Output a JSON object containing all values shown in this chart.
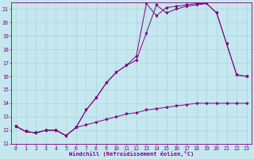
{
  "xlabel": "Windchill (Refroidissement éolien,°C)",
  "ylabel": "",
  "xlim": [
    -0.5,
    23.5
  ],
  "ylim": [
    11,
    21.5
  ],
  "yticks": [
    11,
    12,
    13,
    14,
    15,
    16,
    17,
    18,
    19,
    20,
    21
  ],
  "xticks": [
    0,
    1,
    2,
    3,
    4,
    5,
    6,
    7,
    8,
    9,
    10,
    11,
    12,
    13,
    14,
    15,
    16,
    17,
    18,
    19,
    20,
    21,
    22,
    23
  ],
  "bg_color": "#c5e8ef",
  "line_color": "#800080",
  "grid_color": "#aacdd8",
  "line1_x": [
    0,
    1,
    2,
    3,
    4,
    5,
    6,
    7,
    8,
    9,
    10,
    11,
    12,
    13,
    14,
    15,
    16,
    17,
    18,
    19,
    20,
    21,
    22,
    23
  ],
  "line1_y": [
    12.3,
    11.9,
    11.8,
    12.0,
    12.0,
    11.6,
    12.2,
    13.5,
    14.4,
    15.5,
    16.3,
    16.8,
    17.2,
    19.2,
    21.3,
    20.7,
    21.0,
    21.2,
    21.3,
    21.4,
    20.7,
    18.4,
    16.1,
    16.0
  ],
  "line2_x": [
    0,
    1,
    2,
    3,
    4,
    5,
    6,
    7,
    8,
    9,
    10,
    11,
    12,
    13,
    14,
    15,
    16,
    17,
    18,
    19,
    20,
    21,
    22,
    23
  ],
  "line2_y": [
    12.3,
    11.9,
    11.8,
    12.0,
    12.0,
    11.6,
    12.2,
    13.5,
    14.4,
    15.5,
    16.3,
    16.8,
    17.5,
    21.4,
    20.5,
    21.1,
    21.2,
    21.3,
    21.4,
    21.4,
    20.7,
    18.4,
    16.1,
    16.0
  ],
  "line3_x": [
    0,
    1,
    2,
    3,
    4,
    5,
    6,
    7,
    8,
    9,
    10,
    11,
    12,
    13,
    14,
    15,
    16,
    17,
    18,
    19,
    20,
    21,
    22,
    23
  ],
  "line3_y": [
    12.3,
    11.9,
    11.8,
    12.0,
    12.0,
    11.6,
    12.2,
    12.4,
    12.6,
    12.8,
    13.0,
    13.2,
    13.3,
    13.5,
    13.6,
    13.7,
    13.8,
    13.9,
    14.0,
    14.0,
    14.0,
    14.0,
    14.0,
    14.0
  ],
  "figwidth": 3.2,
  "figheight": 2.0,
  "dpi": 100
}
